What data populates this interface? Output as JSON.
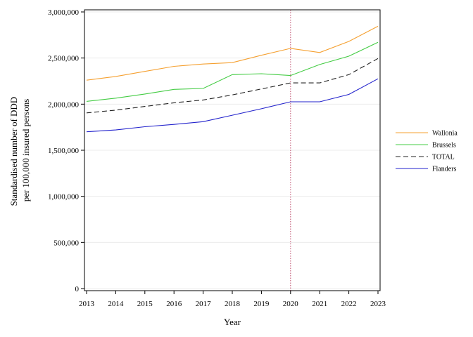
{
  "chart_data": {
    "type": "line",
    "title": "",
    "xlabel": "Year",
    "ylabel": [
      "Standardised number of DDD",
      "per 100,000 insured persons"
    ],
    "x": [
      2013,
      2014,
      2015,
      2016,
      2017,
      2018,
      2019,
      2020,
      2021,
      2022,
      2023
    ],
    "x_tick_labels": [
      "2013",
      "2014",
      "2015",
      "2016",
      "2017",
      "2018",
      "2019",
      "2020",
      "2021",
      "2022",
      "2023"
    ],
    "xlim": [
      2013,
      2023
    ],
    "ylim": [
      0,
      3000000
    ],
    "y_ticks": [
      0,
      500000,
      1000000,
      1500000,
      2000000,
      2500000,
      3000000
    ],
    "y_tick_labels": [
      "0",
      "500,000",
      "1,000,000",
      "1,500,000",
      "2,000,000",
      "2,500,000",
      "3,000,000"
    ],
    "grid": "horizontal",
    "reference_line": {
      "x": 2020,
      "color": "#c05070",
      "style": "dotted"
    },
    "legend_position": "right",
    "series": [
      {
        "name": "Wallonia",
        "color": "#f5a030",
        "dash": "solid",
        "values": [
          2260000,
          2300000,
          2355000,
          2410000,
          2435000,
          2450000,
          2530000,
          2605000,
          2560000,
          2680000,
          2845000
        ]
      },
      {
        "name": "Brussels",
        "color": "#44cc44",
        "dash": "solid",
        "values": [
          2030000,
          2065000,
          2110000,
          2160000,
          2170000,
          2320000,
          2330000,
          2310000,
          2430000,
          2520000,
          2670000
        ]
      },
      {
        "name": "TOTAL",
        "color": "#222222",
        "dash": "dashed",
        "values": [
          1905000,
          1935000,
          1975000,
          2015000,
          2045000,
          2100000,
          2165000,
          2230000,
          2230000,
          2320000,
          2495000
        ]
      },
      {
        "name": "Flanders",
        "color": "#2222cc",
        "dash": "solid",
        "values": [
          1700000,
          1720000,
          1755000,
          1780000,
          1810000,
          1880000,
          1950000,
          2025000,
          2025000,
          2105000,
          2275000
        ]
      }
    ]
  }
}
